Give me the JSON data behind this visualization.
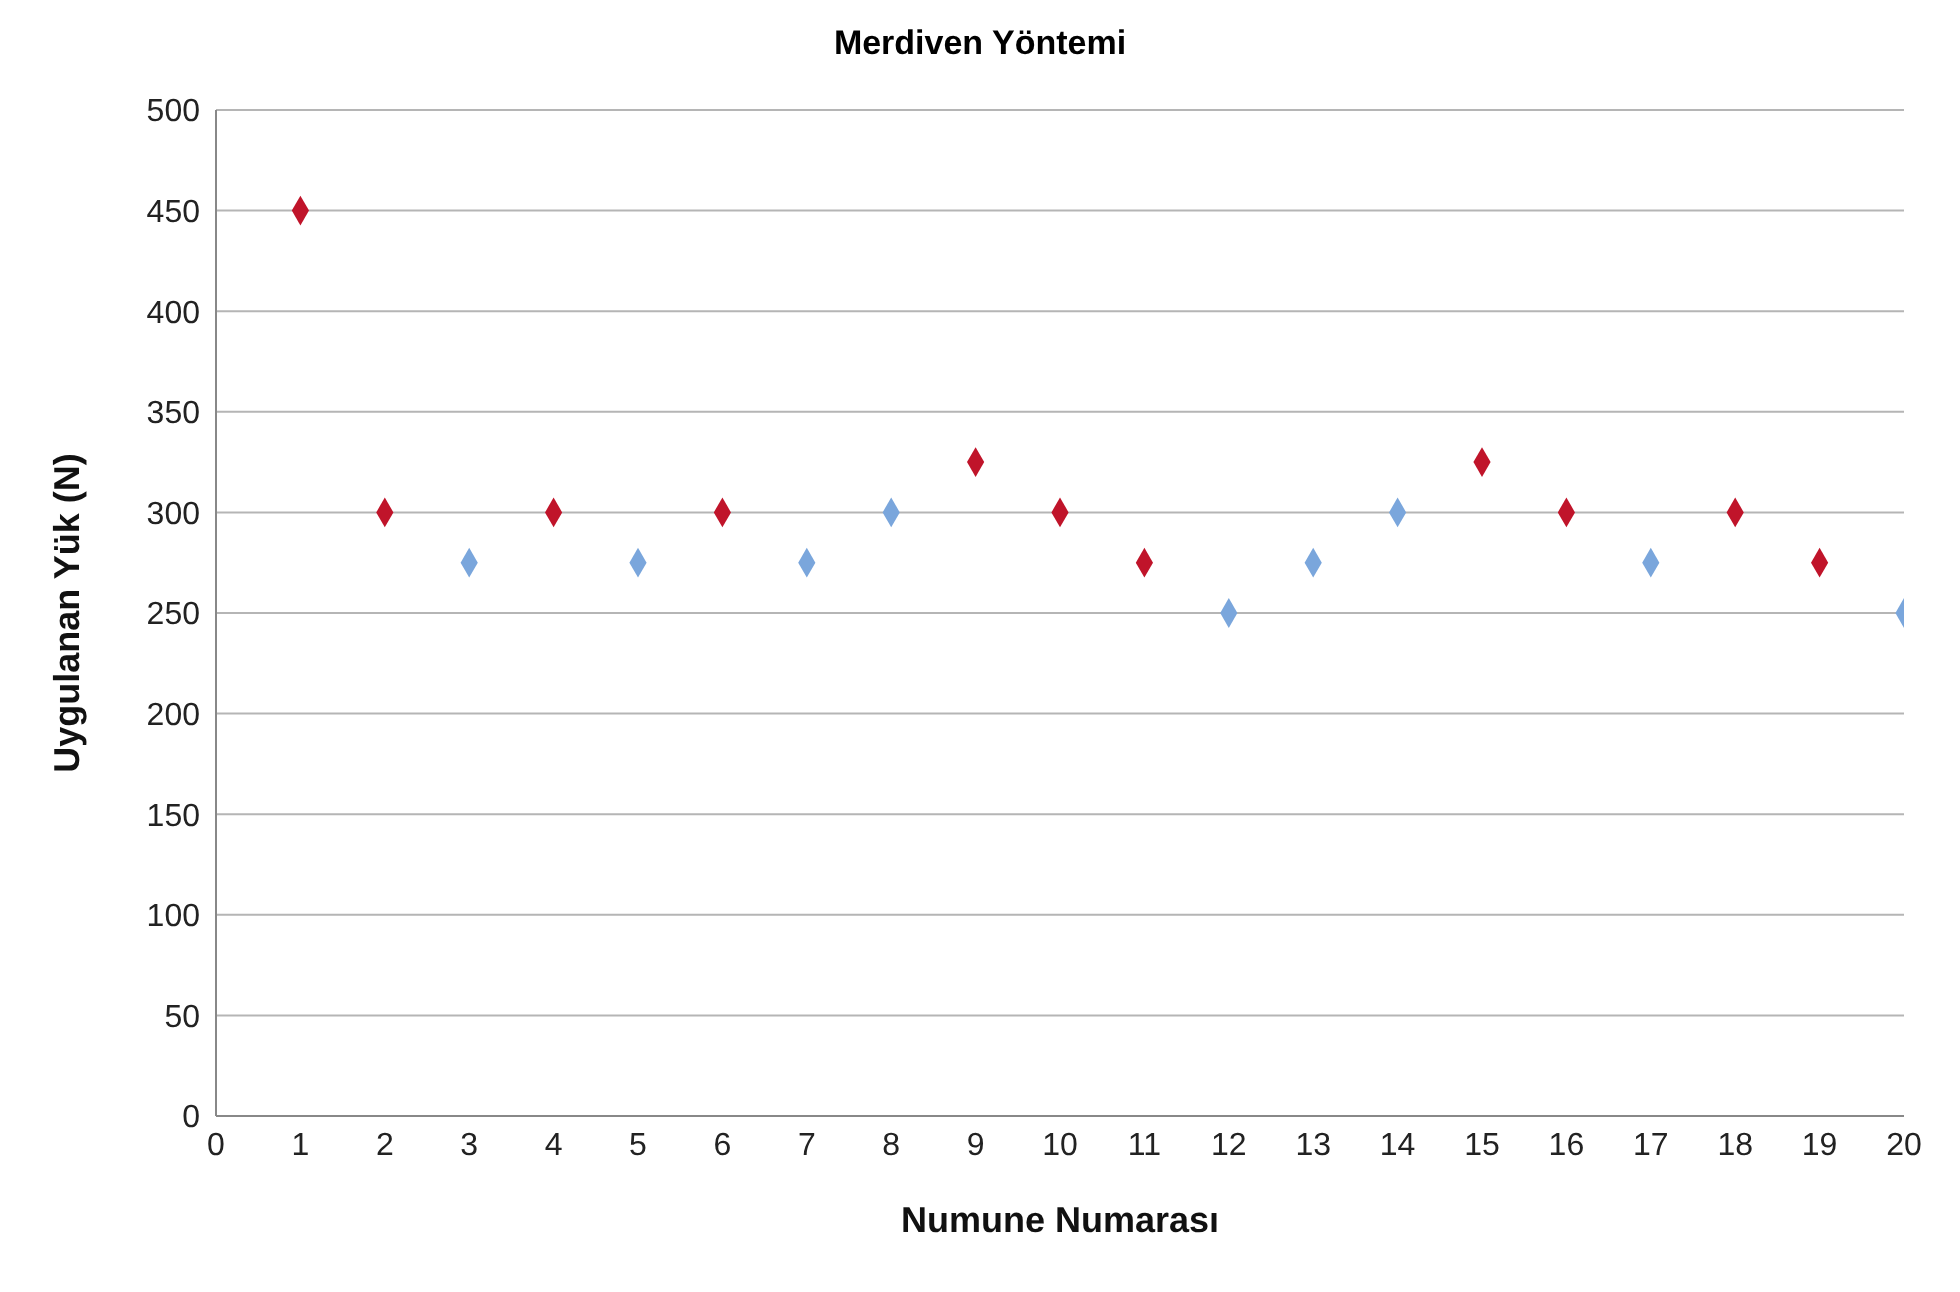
{
  "chart_data": {
    "type": "scatter",
    "title": "Merdiven Yöntemi",
    "xlabel": "Numune Numarası",
    "ylabel": "Uygulanan Yük (N)",
    "series": [
      {
        "color": "#c0142a",
        "x": [
          1,
          2,
          4,
          6,
          9,
          10,
          11,
          15,
          16,
          18,
          19
        ],
        "values": [
          450,
          300,
          300,
          300,
          325,
          300,
          275,
          325,
          300,
          300,
          275
        ]
      },
      {
        "color": "#7aa6dc",
        "x": [
          3,
          5,
          7,
          8,
          12,
          13,
          14,
          17,
          20
        ],
        "values": [
          275,
          275,
          275,
          300,
          250,
          275,
          300,
          275,
          250
        ]
      }
    ],
    "xlim": [
      0,
      20
    ],
    "xticks": [
      0,
      1,
      2,
      3,
      4,
      5,
      6,
      7,
      8,
      9,
      10,
      11,
      12,
      13,
      14,
      15,
      16,
      17,
      18,
      19,
      20
    ],
    "ylim": [
      0,
      500
    ],
    "yticks": [
      0,
      50,
      100,
      150,
      200,
      250,
      300,
      350,
      400,
      450,
      500
    ],
    "grid": "y",
    "marker": "diamond",
    "legend": false
  }
}
